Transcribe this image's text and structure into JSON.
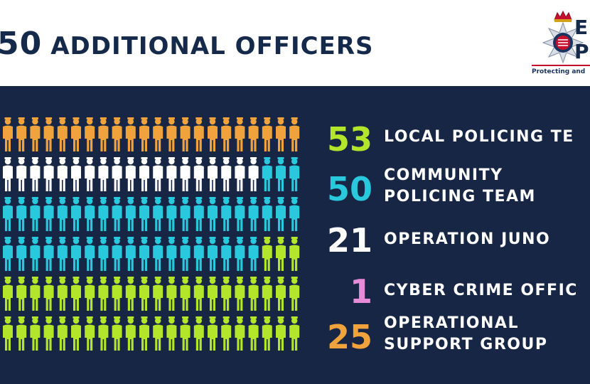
{
  "header": {
    "title_number": "50",
    "title_text": "ADDITIONAL OFFICERS",
    "logo": {
      "text_line1": "E",
      "text_line2": "P",
      "tagline": "Protecting and",
      "icon": "police-star-badge-icon"
    }
  },
  "colors": {
    "background": "#162644",
    "header_text": "#152a4a",
    "local_policing": "#f0a33c",
    "community_policing": "#29c8dd",
    "operation_juno": "#ffffff",
    "cyber_crime": "#e58bd8",
    "operational_support": "#b3e52b",
    "grid_white": "#ffffff"
  },
  "legend": [
    {
      "number": "53",
      "label_lines": [
        "LOCAL POLICING TE"
      ],
      "color": "#b3e52b"
    },
    {
      "number": "50",
      "label_lines": [
        "COMMUNITY",
        "POLICING TEAM"
      ],
      "color": "#29c8dd"
    },
    {
      "number": "21",
      "label_lines": [
        "OPERATION JUNO"
      ],
      "color": "#ffffff"
    },
    {
      "number": "1",
      "label_lines": [
        "CYBER CRIME OFFIC"
      ],
      "color": "#e58bd8"
    },
    {
      "number": "25",
      "label_lines": [
        "OPERATIONAL",
        "SUPPORT GROUP"
      ],
      "color": "#f0a33c"
    }
  ],
  "pictogram_rows": [
    {
      "segments": [
        {
          "color": "#f0a33c",
          "count": 22
        }
      ]
    },
    {
      "segments": [
        {
          "color": "#ffffff",
          "count": 19
        },
        {
          "color": "#29c8dd",
          "count": 3
        }
      ]
    },
    {
      "segments": [
        {
          "color": "#29c8dd",
          "count": 22
        }
      ]
    },
    {
      "segments": [
        {
          "color": "#29c8dd",
          "count": 19
        },
        {
          "color": "#b3e52b",
          "count": 3
        }
      ]
    },
    {
      "segments": [
        {
          "color": "#b3e52b",
          "count": 22
        }
      ]
    },
    {
      "segments": [
        {
          "color": "#b3e52b",
          "count": 22
        }
      ]
    }
  ]
}
